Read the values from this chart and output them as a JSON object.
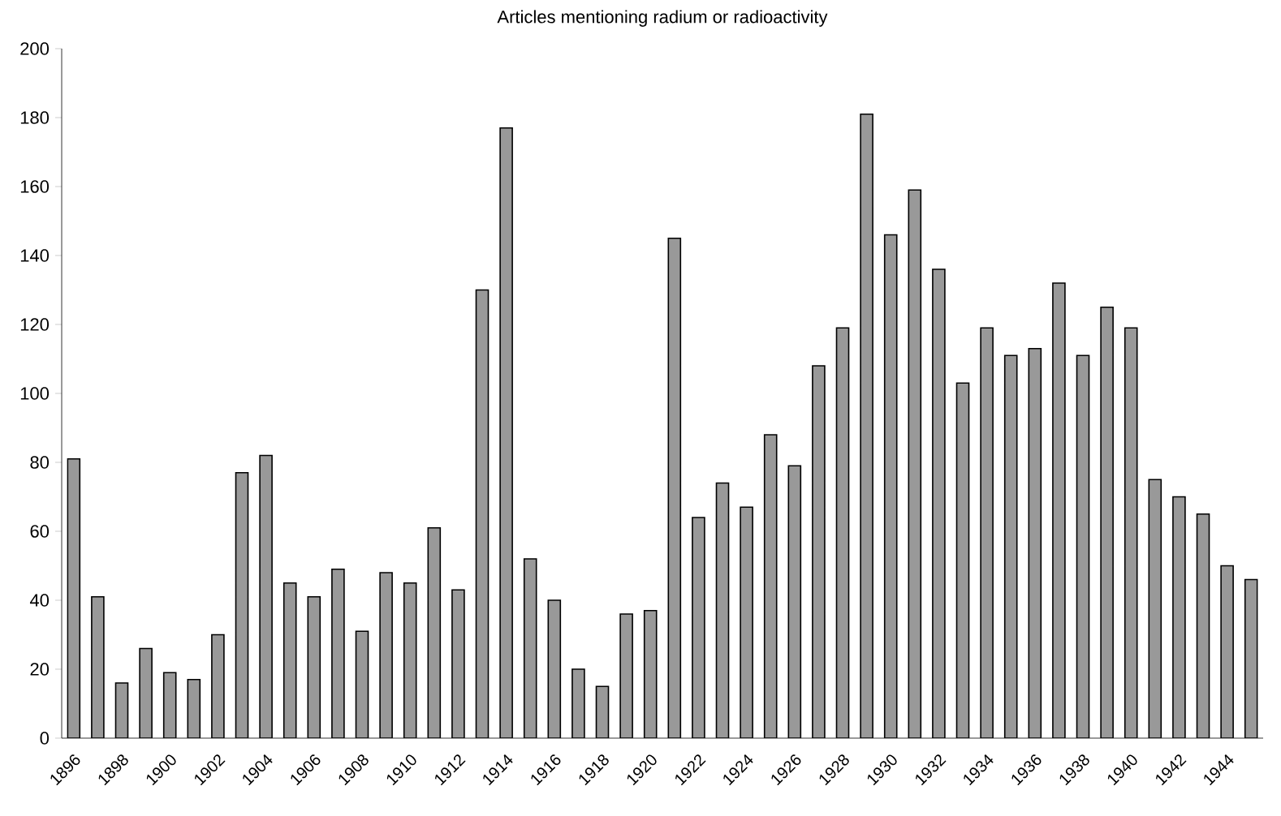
{
  "chart_data": {
    "type": "bar",
    "title": "Articles mentioning radium or radioactivity",
    "categories": [
      "1896",
      null,
      "1898",
      null,
      "1900",
      null,
      "1902",
      null,
      "1904",
      null,
      "1906",
      null,
      "1908",
      null,
      "1910",
      null,
      "1912",
      null,
      "1914",
      null,
      "1916",
      null,
      "1918",
      null,
      "1920",
      null,
      "1922",
      null,
      "1924",
      null,
      "1926",
      null,
      "1928",
      null,
      "1930",
      null,
      "1932",
      null,
      "1934",
      null,
      "1936",
      null,
      "1938",
      null,
      "1940",
      null,
      "1942",
      null,
      "1944",
      null
    ],
    "values": [
      81,
      41,
      16,
      26,
      19,
      17,
      30,
      77,
      82,
      45,
      41,
      49,
      31,
      48,
      45,
      61,
      43,
      130,
      177,
      52,
      40,
      20,
      15,
      36,
      37,
      145,
      64,
      74,
      67,
      88,
      79,
      108,
      119,
      181,
      146,
      159,
      136,
      103,
      119,
      111,
      113,
      132,
      111,
      125,
      119,
      75,
      70,
      65,
      50,
      46
    ],
    "color": "#999999",
    "ylim": [
      0,
      200
    ],
    "yticks": [
      0,
      20,
      40,
      60,
      80,
      100,
      120,
      140,
      160,
      180,
      200
    ],
    "grid": false
  }
}
